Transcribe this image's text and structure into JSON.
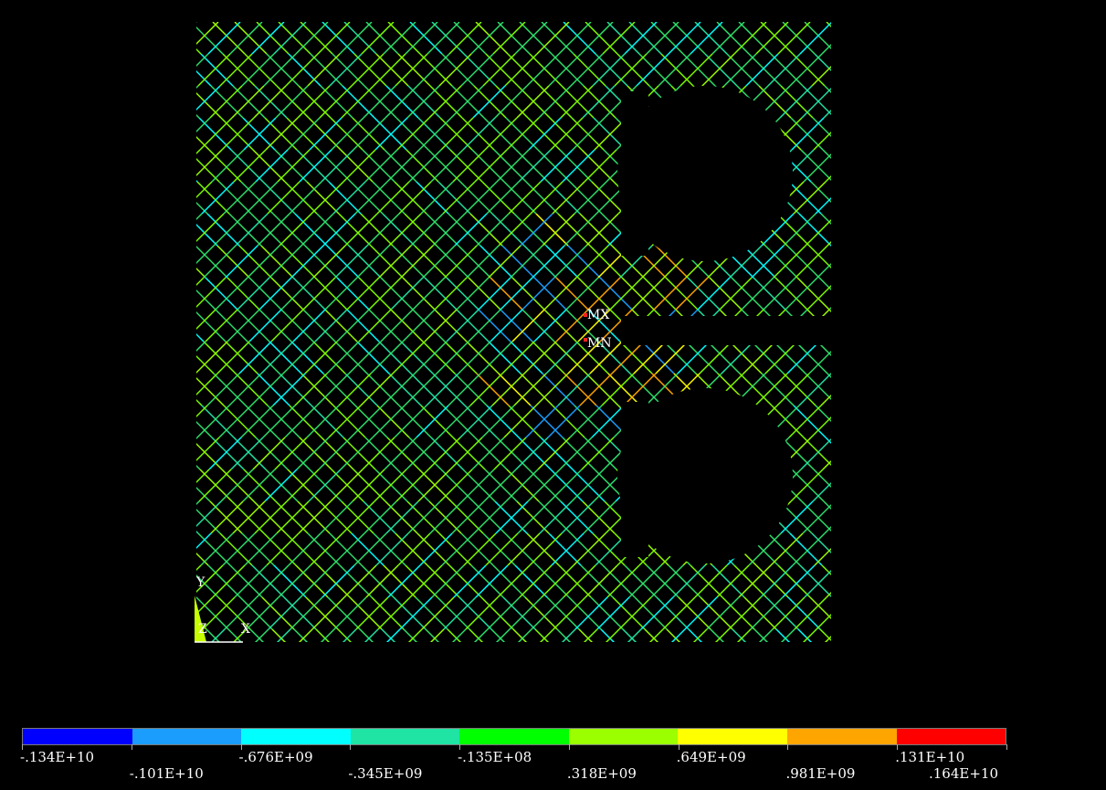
{
  "plot": {
    "markers": {
      "max_label": "MX",
      "min_label": "MN"
    },
    "triad": {
      "y_label": "Y",
      "z_label": "Z",
      "x_label": "X"
    }
  },
  "legend": {
    "colors": [
      "#0000ff",
      "#1a9dfc",
      "#00ffff",
      "#1fe4a4",
      "#00ff00",
      "#9cff00",
      "#ffff00",
      "#ffa500",
      "#ff0000"
    ],
    "labels": [
      ".134E+10",
      ".101E+10",
      ".676E+09",
      ".345E+09",
      ".135E+08",
      ".318E+09",
      ".649E+09",
      ".981E+09",
      ".131E+10",
      ".164E+10"
    ]
  },
  "legend_labels_display": [
    "-.134E+10",
    "-.101E+10",
    "-.676E+09",
    "-.345E+09",
    "-.135E+08",
    ".318E+09",
    ".649E+09",
    ".981E+09",
    ".131E+10",
    ".164E+10"
  ]
}
